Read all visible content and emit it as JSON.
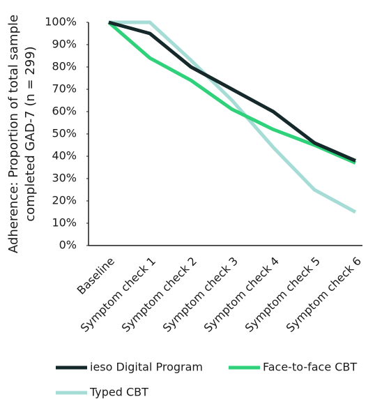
{
  "chart_data": {
    "type": "line",
    "ylabel": [
      "Adherence: Proportion of total sample",
      "completed GAD-7 (n = 299)"
    ],
    "categories": [
      "Baseline",
      "Symptom check 1",
      "Symptom check 2",
      "Symptom check 3",
      "Symptom check 4",
      "Symptom check 5",
      "Symptom check 6"
    ],
    "series": [
      {
        "name": "ieso Digital Program",
        "color": "#16292a",
        "values": [
          100,
          95,
          80,
          70,
          60,
          46,
          38
        ]
      },
      {
        "name": "Face-to-face CBT",
        "color": "#2fd27a",
        "values": [
          100,
          84,
          74,
          61,
          52,
          45,
          37
        ]
      },
      {
        "name": "Typed CBT",
        "color": "#a6dcd6",
        "values": [
          100,
          100,
          83,
          65,
          44,
          25,
          15
        ]
      }
    ],
    "ylim": [
      0,
      100
    ],
    "yticks": [
      {
        "value": 0,
        "label": "0%"
      },
      {
        "value": 10,
        "label": "10%"
      },
      {
        "value": 20,
        "label": "20%"
      },
      {
        "value": 30,
        "label": "30%"
      },
      {
        "value": 40,
        "label": "40%"
      },
      {
        "value": 50,
        "label": "50%"
      },
      {
        "value": 60,
        "label": "60%"
      },
      {
        "value": 70,
        "label": "70%"
      },
      {
        "value": 80,
        "label": "80%"
      },
      {
        "value": 90,
        "label": "90%"
      },
      {
        "value": 100,
        "label": "100%"
      }
    ],
    "grid": false
  }
}
